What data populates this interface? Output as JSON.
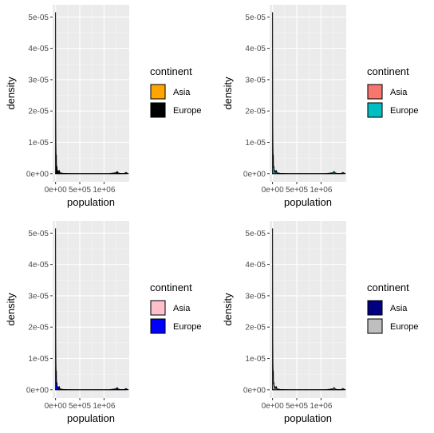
{
  "chart_data": [
    {
      "type": "area",
      "xlabel": "population",
      "ylabel": "density",
      "x_ticks": [
        "0e+00",
        "5e+05",
        "1e+06"
      ],
      "y_ticks": [
        "0e+00",
        "1e-05",
        "2e-05",
        "3e-05",
        "4e-05",
        "5e-05"
      ],
      "xlim": [
        -60000,
        1520000
      ],
      "ylim": [
        -2.6e-06,
        5.39e-05
      ],
      "grid": true,
      "legend": {
        "title": "continent",
        "placement": "right"
      },
      "series": [
        {
          "name": "Asia",
          "fill": "#FFA500",
          "x": [
            0,
            8000,
            16000,
            24000,
            32000,
            45000,
            60000,
            80000,
            110000,
            150000,
            250000,
            400000,
            600000,
            800000,
            1000000,
            1200000,
            1280000,
            1300000,
            1320000,
            1400000,
            1450000
          ],
          "values": [
            1e-07,
            4e-07,
            7e-07,
            6e-07,
            4e-07,
            3e-07,
            3e-07,
            2e-07,
            1.5e-07,
            1e-07,
            5e-08,
            2e-08,
            1e-08,
            1e-08,
            1e-08,
            2e-08,
            1e-07,
            2e-07,
            1e-07,
            2e-08,
            1e-08
          ]
        },
        {
          "name": "Europe",
          "fill": "#000000",
          "x": [
            0,
            2000,
            4000,
            6000,
            8000,
            10000,
            12000,
            14000,
            16000,
            18000,
            20000,
            24000,
            28000,
            32000,
            36000,
            40000,
            45000,
            50000,
            60000,
            70000,
            80000,
            90000,
            100000,
            120000,
            150000,
            200000,
            300000,
            500000,
            800000,
            1100000,
            1250000,
            1270000,
            1290000,
            1310000,
            1330000,
            1400000,
            1440000,
            1450000,
            1470000,
            1500000
          ],
          "values": [
            5.15e-05,
            3.4e-05,
            1.65e-05,
            1.05e-05,
            8e-06,
            6.5e-06,
            5.8e-06,
            4.5e-06,
            6e-06,
            3.2e-06,
            2.2e-06,
            1.8e-06,
            2.4e-06,
            1.4e-06,
            8e-07,
            1.2e-06,
            7e-07,
            4e-07,
            8e-07,
            5e-07,
            9e-07,
            3e-07,
            2e-07,
            2e-07,
            1e-07,
            5e-08,
            2e-08,
            1e-08,
            1e-08,
            2e-08,
            3e-07,
            7e-07,
            3e-07,
            1e-07,
            5e-08,
            5e-08,
            2e-07,
            4e-07,
            2e-07,
            5e-08
          ]
        }
      ]
    },
    {
      "type": "area",
      "xlabel": "population",
      "ylabel": "density",
      "x_ticks": [
        "0e+00",
        "5e+05",
        "1e+06"
      ],
      "y_ticks": [
        "0e+00",
        "1e-05",
        "2e-05",
        "3e-05",
        "4e-05",
        "5e-05"
      ],
      "xlim": [
        -60000,
        1520000
      ],
      "ylim": [
        -2.6e-06,
        5.39e-05
      ],
      "grid": true,
      "legend": {
        "title": "continent",
        "placement": "right"
      },
      "series": [
        {
          "name": "Asia",
          "fill": "#F8766D",
          "x": [
            0,
            8000,
            16000,
            24000,
            32000,
            45000,
            60000,
            80000,
            110000,
            150000,
            250000,
            400000,
            600000,
            800000,
            1000000,
            1200000,
            1280000,
            1300000,
            1320000,
            1400000,
            1450000
          ],
          "values": [
            1e-07,
            4e-07,
            7e-07,
            6e-07,
            4e-07,
            3e-07,
            3e-07,
            2e-07,
            1.5e-07,
            1e-07,
            5e-08,
            2e-08,
            1e-08,
            1e-08,
            1e-08,
            2e-08,
            1e-07,
            2e-07,
            1e-07,
            2e-08,
            1e-08
          ]
        },
        {
          "name": "Europe",
          "fill": "#00BFC4",
          "x": [
            0,
            2000,
            4000,
            6000,
            8000,
            10000,
            12000,
            14000,
            16000,
            18000,
            20000,
            24000,
            28000,
            32000,
            36000,
            40000,
            45000,
            50000,
            60000,
            70000,
            80000,
            90000,
            100000,
            120000,
            150000,
            200000,
            300000,
            500000,
            800000,
            1100000,
            1250000,
            1270000,
            1290000,
            1310000,
            1330000,
            1400000,
            1440000,
            1450000,
            1470000,
            1500000
          ],
          "values": [
            5.15e-05,
            3.4e-05,
            1.65e-05,
            1.05e-05,
            8e-06,
            6.5e-06,
            5.8e-06,
            4.5e-06,
            6e-06,
            3.2e-06,
            2.2e-06,
            1.8e-06,
            2.4e-06,
            1.4e-06,
            8e-07,
            1.2e-06,
            7e-07,
            4e-07,
            8e-07,
            5e-07,
            9e-07,
            3e-07,
            2e-07,
            2e-07,
            1e-07,
            5e-08,
            2e-08,
            1e-08,
            1e-08,
            2e-08,
            3e-07,
            7e-07,
            3e-07,
            1e-07,
            5e-08,
            5e-08,
            2e-07,
            4e-07,
            2e-07,
            5e-08
          ]
        }
      ]
    },
    {
      "type": "area",
      "xlabel": "population",
      "ylabel": "density",
      "x_ticks": [
        "0e+00",
        "5e+05",
        "1e+06"
      ],
      "y_ticks": [
        "0e+00",
        "1e-05",
        "2e-05",
        "3e-05",
        "4e-05",
        "5e-05"
      ],
      "xlim": [
        -60000,
        1520000
      ],
      "ylim": [
        -2.6e-06,
        5.39e-05
      ],
      "grid": true,
      "legend": {
        "title": "continent",
        "placement": "right"
      },
      "series": [
        {
          "name": "Asia",
          "fill": "#FFC0CB",
          "x": [
            0,
            8000,
            16000,
            24000,
            32000,
            45000,
            60000,
            80000,
            110000,
            150000,
            250000,
            400000,
            600000,
            800000,
            1000000,
            1200000,
            1280000,
            1300000,
            1320000,
            1400000,
            1450000
          ],
          "values": [
            1e-07,
            4e-07,
            7e-07,
            6e-07,
            4e-07,
            3e-07,
            3e-07,
            2e-07,
            1.5e-07,
            1e-07,
            5e-08,
            2e-08,
            1e-08,
            1e-08,
            1e-08,
            2e-08,
            1e-07,
            2e-07,
            1e-07,
            2e-08,
            1e-08
          ]
        },
        {
          "name": "Europe",
          "fill": "#0000FF",
          "x": [
            0,
            2000,
            4000,
            6000,
            8000,
            10000,
            12000,
            14000,
            16000,
            18000,
            20000,
            24000,
            28000,
            32000,
            36000,
            40000,
            45000,
            50000,
            60000,
            70000,
            80000,
            90000,
            100000,
            120000,
            150000,
            200000,
            300000,
            500000,
            800000,
            1100000,
            1250000,
            1270000,
            1290000,
            1310000,
            1330000,
            1400000,
            1440000,
            1450000,
            1470000,
            1500000
          ],
          "values": [
            5.15e-05,
            3.4e-05,
            1.65e-05,
            1.05e-05,
            8e-06,
            6.5e-06,
            5.8e-06,
            4.5e-06,
            6e-06,
            3.2e-06,
            2.2e-06,
            1.8e-06,
            2.4e-06,
            1.4e-06,
            8e-07,
            1.2e-06,
            7e-07,
            4e-07,
            8e-07,
            5e-07,
            9e-07,
            3e-07,
            2e-07,
            2e-07,
            1e-07,
            5e-08,
            2e-08,
            1e-08,
            1e-08,
            2e-08,
            3e-07,
            7e-07,
            3e-07,
            1e-07,
            5e-08,
            5e-08,
            2e-07,
            4e-07,
            2e-07,
            5e-08
          ]
        }
      ]
    },
    {
      "type": "area",
      "xlabel": "population",
      "ylabel": "density",
      "x_ticks": [
        "0e+00",
        "5e+05",
        "1e+06"
      ],
      "y_ticks": [
        "0e+00",
        "1e-05",
        "2e-05",
        "3e-05",
        "4e-05",
        "5e-05"
      ],
      "xlim": [
        -60000,
        1520000
      ],
      "ylim": [
        -2.6e-06,
        5.39e-05
      ],
      "grid": true,
      "legend": {
        "title": "continent",
        "placement": "right"
      },
      "series": [
        {
          "name": "Asia",
          "fill": "#000080",
          "x": [
            0,
            8000,
            16000,
            24000,
            32000,
            45000,
            60000,
            80000,
            110000,
            150000,
            250000,
            400000,
            600000,
            800000,
            1000000,
            1200000,
            1280000,
            1300000,
            1320000,
            1400000,
            1450000
          ],
          "values": [
            1e-07,
            4e-07,
            7e-07,
            6e-07,
            4e-07,
            3e-07,
            3e-07,
            2e-07,
            1.5e-07,
            1e-07,
            5e-08,
            2e-08,
            1e-08,
            1e-08,
            1e-08,
            2e-08,
            1e-07,
            2e-07,
            1e-07,
            2e-08,
            1e-08
          ]
        },
        {
          "name": "Europe",
          "fill": "#BEBEBE",
          "x": [
            0,
            2000,
            4000,
            6000,
            8000,
            10000,
            12000,
            14000,
            16000,
            18000,
            20000,
            24000,
            28000,
            32000,
            36000,
            40000,
            45000,
            50000,
            60000,
            70000,
            80000,
            90000,
            100000,
            120000,
            150000,
            200000,
            300000,
            500000,
            800000,
            1100000,
            1250000,
            1270000,
            1290000,
            1310000,
            1330000,
            1400000,
            1440000,
            1450000,
            1470000,
            1500000
          ],
          "values": [
            5.15e-05,
            3.4e-05,
            1.65e-05,
            1.05e-05,
            8e-06,
            6.5e-06,
            5.8e-06,
            4.5e-06,
            6e-06,
            3.2e-06,
            2.2e-06,
            1.8e-06,
            2.4e-06,
            1.4e-06,
            8e-07,
            1.2e-06,
            7e-07,
            4e-07,
            8e-07,
            5e-07,
            9e-07,
            3e-07,
            2e-07,
            2e-07,
            1e-07,
            5e-08,
            2e-08,
            1e-08,
            1e-08,
            2e-08,
            3e-07,
            7e-07,
            3e-07,
            1e-07,
            5e-08,
            5e-08,
            2e-07,
            4e-07,
            2e-07,
            5e-08
          ]
        }
      ]
    }
  ]
}
